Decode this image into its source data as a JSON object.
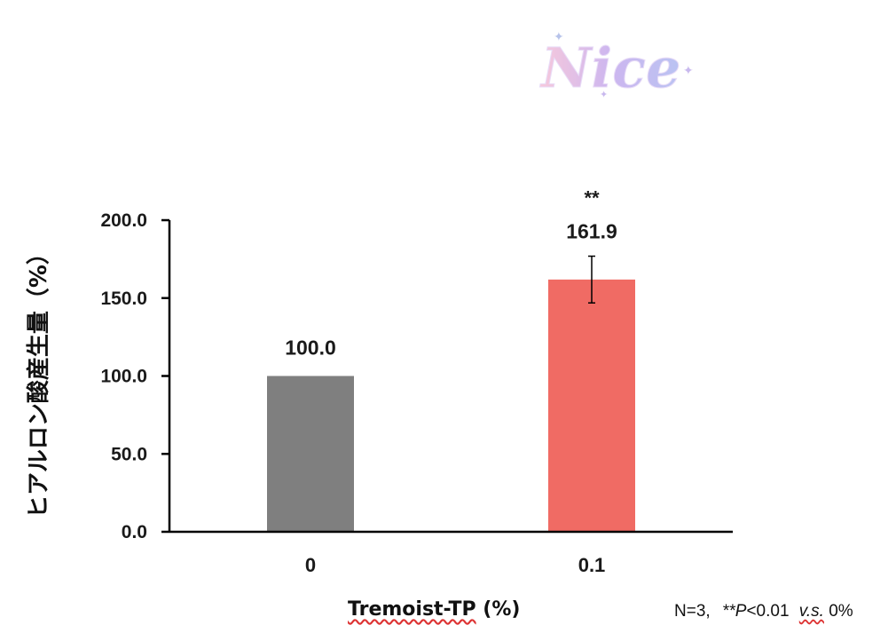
{
  "logo": {
    "text": "Nice"
  },
  "chart_data": {
    "type": "bar",
    "categories": [
      "0",
      "0.1"
    ],
    "values": [
      100.0,
      161.9
    ],
    "value_labels": [
      "100.0",
      "161.9"
    ],
    "errors": [
      null,
      15.0
    ],
    "significance": [
      null,
      "**"
    ],
    "bar_colors": [
      "#7f7f7f",
      "#f06b64"
    ],
    "ylim": [
      0,
      200
    ],
    "yticks": [
      0,
      50,
      100,
      150,
      200
    ],
    "ytick_labels": [
      "0.0",
      "50.0",
      "100.0",
      "150.0",
      "200.0"
    ],
    "ylabel": "ヒアルロン酸産生量（%）",
    "xlabel": {
      "name": "Tremoist-TP",
      "unit": "(%)"
    },
    "grid": false
  },
  "footnote": {
    "prefix": "N=3,",
    "stars": "**",
    "p": "P",
    "cond": "<0.01",
    "vs": "v.s.",
    "ref": "0%"
  }
}
